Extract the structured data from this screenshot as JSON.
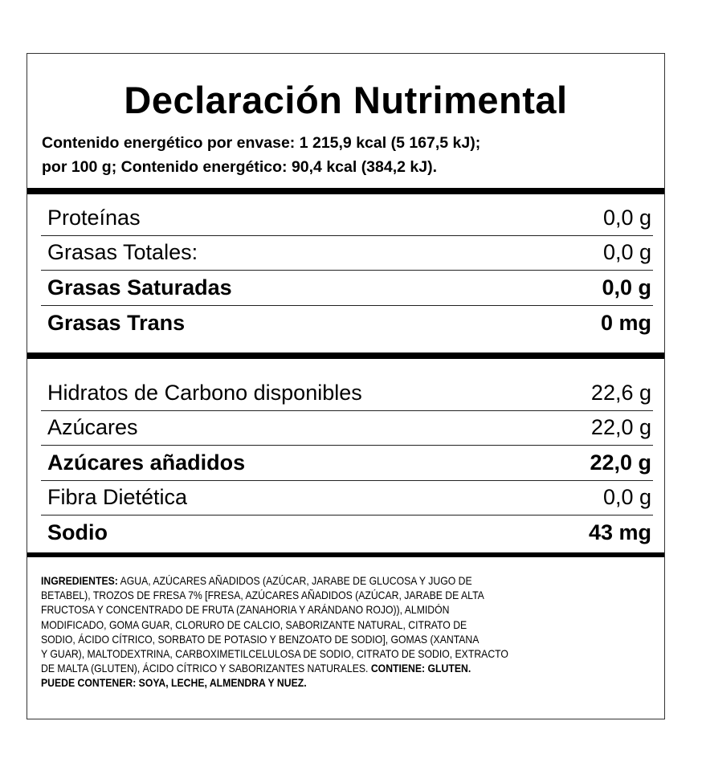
{
  "title": "Declaración Nutrimental",
  "energy": {
    "line1": "Contenido energético por envase: 1 215,9 kcal (5 167,5 kJ);",
    "line2_prefix": "por 100 g; ",
    "line2_bold": "Contenido energético: 90,4 kcal (384,2 kJ)."
  },
  "section1": [
    {
      "name": "Proteínas",
      "value": "0,0 g",
      "bold": false
    },
    {
      "name": "Grasas Totales:",
      "value": "0,0 g",
      "bold": false
    },
    {
      "name": "Grasas Saturadas",
      "value": "0,0 g",
      "bold": true
    },
    {
      "name": "Grasas Trans",
      "value": "0 mg",
      "bold": true
    }
  ],
  "section2": [
    {
      "name": "Hidratos de Carbono disponibles",
      "value": "22,6 g",
      "bold": false
    },
    {
      "name": "Azúcares",
      "value": "22,0 g",
      "bold": false
    },
    {
      "name": "Azúcares añadidos",
      "value": "22,0 g",
      "bold": true
    },
    {
      "name": "Fibra Dietética",
      "value": "0,0 g",
      "bold": false
    },
    {
      "name": "Sodio",
      "value": "43 mg",
      "bold": true
    }
  ],
  "ingredients": {
    "label": "INGREDIENTES:",
    "lines": [
      " AGUA, AZÚCARES AÑADIDOS (AZÚCAR, JARABE DE GLUCOSA Y JUGO DE",
      "BETABEL), TROZOS DE FRESA 7% [FRESA, AZÚCARES AÑADIDOS (AZÚCAR, JARABE DE ALTA",
      "FRUCTOSA Y CONCENTRADO DE FRUTA (ZANAHORIA Y ARÁNDANO ROJO)), ALMIDÓN",
      "MODIFICADO, GOMA GUAR, CLORURO DE CALCIO, SABORIZANTE NATURAL, CITRATO DE",
      "SODIO, ÁCIDO CÍTRICO, SORBATO DE POTASIO Y BENZOATO DE SODIO], GOMAS (XANTANA",
      "Y GUAR), MALTODEXTRINA, CARBOXIMETILCELULOSA DE SODIO, CITRATO DE SODIO, EXTRACTO",
      "DE MALTA (GLUTEN), ÁCIDO CÍTRICO Y SABORIZANTES NATURALES. "
    ],
    "contains": "CONTIENE: GLUTEN.",
    "may_contain": "PUEDE CONTENER: SOYA, LECHE, ALMENDRA Y NUEZ."
  }
}
